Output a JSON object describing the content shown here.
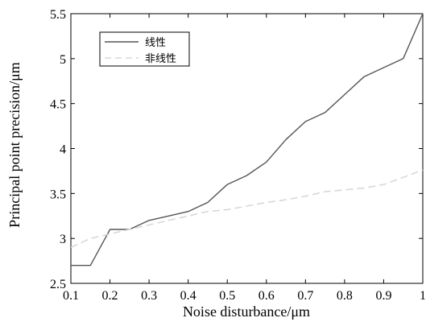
{
  "chart_data": {
    "type": "line",
    "xlabel": "Noise disturbance/μm",
    "ylabel": "Principal point precision/μm",
    "xlim": [
      0.1,
      1.0
    ],
    "ylim": [
      2.5,
      5.5
    ],
    "x_ticks": [
      "0.1",
      "0.2",
      "0.3",
      "0.4",
      "0.5",
      "0.6",
      "0.7",
      "0.8",
      "0.9",
      "1"
    ],
    "y_ticks": [
      "2.5",
      "3",
      "3.5",
      "4",
      "4.5",
      "5",
      "5.5"
    ],
    "grid": false,
    "legend_position": "top-left",
    "series": [
      {
        "name": "线性",
        "color": "#555555",
        "style": "solid",
        "x": [
          0.1,
          0.15,
          0.2,
          0.25,
          0.3,
          0.35,
          0.4,
          0.45,
          0.5,
          0.55,
          0.6,
          0.65,
          0.7,
          0.75,
          0.8,
          0.85,
          0.9,
          0.95,
          1.0
        ],
        "y": [
          2.7,
          2.7,
          3.1,
          3.1,
          3.2,
          3.25,
          3.3,
          3.4,
          3.6,
          3.7,
          3.85,
          4.1,
          4.3,
          4.4,
          4.6,
          4.8,
          4.9,
          5.0,
          5.5
        ]
      },
      {
        "name": "非线性",
        "color": "#d8d8d8",
        "style": "dashed",
        "x": [
          0.1,
          0.15,
          0.2,
          0.25,
          0.3,
          0.35,
          0.4,
          0.45,
          0.5,
          0.55,
          0.6,
          0.65,
          0.7,
          0.75,
          0.8,
          0.85,
          0.9,
          0.95,
          1.0
        ],
        "y": [
          2.9,
          3.0,
          3.05,
          3.1,
          3.15,
          3.2,
          3.25,
          3.3,
          3.32,
          3.36,
          3.4,
          3.43,
          3.47,
          3.52,
          3.54,
          3.56,
          3.6,
          3.68,
          3.76
        ]
      }
    ]
  }
}
